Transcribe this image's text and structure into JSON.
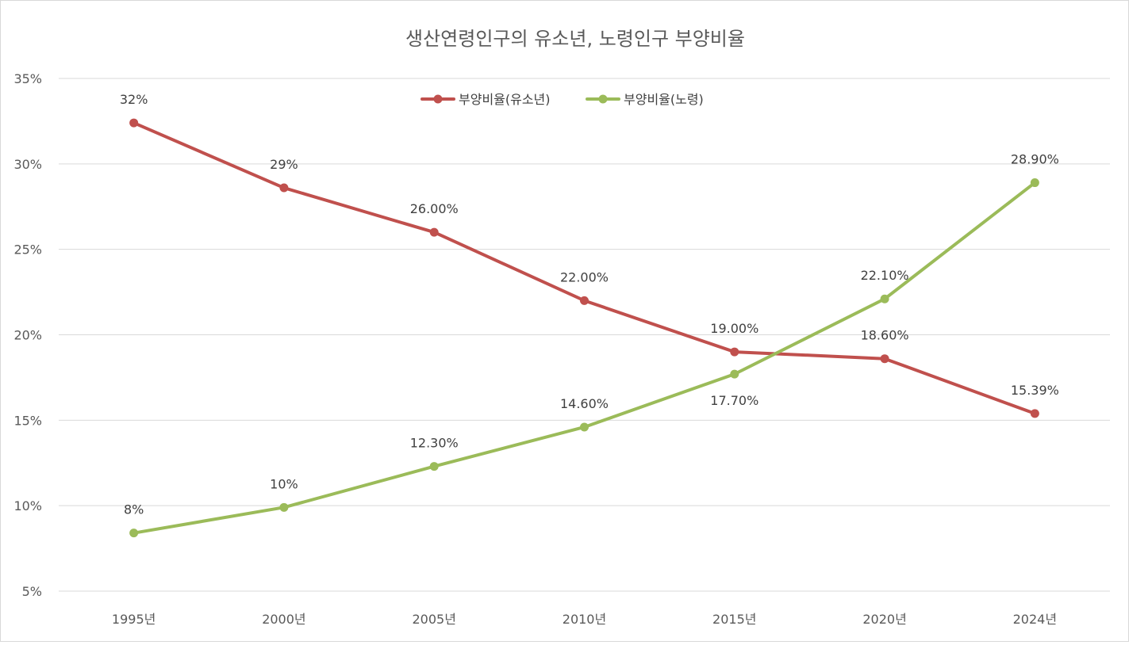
{
  "chart_data": {
    "type": "line",
    "title": "생산연령인구의 유소년, 노령인구 부양비율",
    "categories": [
      "1995년",
      "2000년",
      "2005년",
      "2010년",
      "2015년",
      "2020년",
      "2024년"
    ],
    "ylim": [
      5,
      35
    ],
    "yticks": [
      5,
      10,
      15,
      20,
      25,
      30,
      35
    ],
    "ytick_labels": [
      "5%",
      "10%",
      "15%",
      "20%",
      "25%",
      "30%",
      "35%"
    ],
    "grid": true,
    "legend_position": "top-center",
    "series": [
      {
        "name": "부양비율(유소년)",
        "color": "#c0504d",
        "values": [
          32.4,
          28.6,
          26.0,
          22.0,
          19.0,
          18.6,
          15.39
        ],
        "labels": [
          "32%",
          "29%",
          "26.00%",
          "22.00%",
          "19.00%",
          "18.60%",
          "15.39%"
        ],
        "label_placement": [
          "above",
          "above",
          "above",
          "above",
          "above",
          "above",
          "above"
        ]
      },
      {
        "name": "부양비율(노령)",
        "color": "#9bbb59",
        "values": [
          8.4,
          9.9,
          12.3,
          14.6,
          17.7,
          22.1,
          28.9
        ],
        "labels": [
          "8%",
          "10%",
          "12.30%",
          "14.60%",
          "17.70%",
          "22.10%",
          "28.90%"
        ],
        "label_placement": [
          "above",
          "above",
          "above",
          "above",
          "below",
          "above",
          "above"
        ]
      }
    ]
  }
}
